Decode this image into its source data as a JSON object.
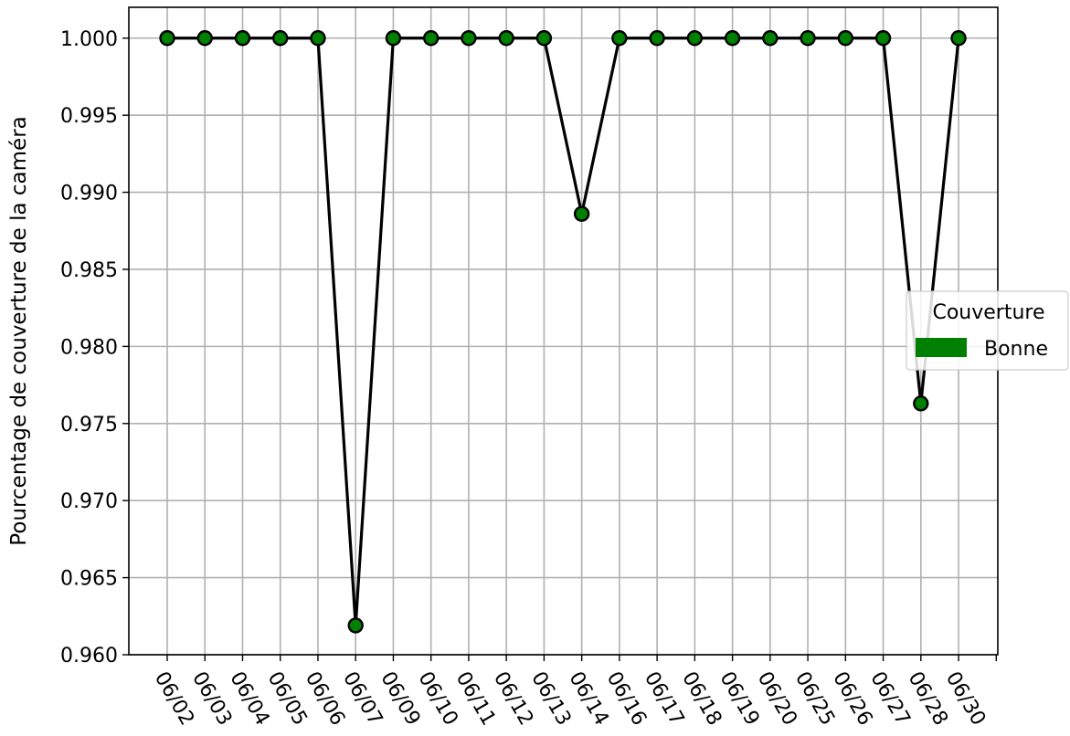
{
  "chart_data": {
    "type": "line",
    "title": "",
    "xlabel": "",
    "ylabel": "Pourcentage de couverture de la caméra",
    "categories": [
      "06/02",
      "06/03",
      "06/04",
      "06/05",
      "06/06",
      "06/07",
      "06/09",
      "06/10",
      "06/11",
      "06/12",
      "06/13",
      "06/14",
      "06/16",
      "06/17",
      "06/18",
      "06/19",
      "06/20",
      "06/25",
      "06/26",
      "06/27",
      "06/28",
      "06/30"
    ],
    "values": [
      1.0,
      1.0,
      1.0,
      1.0,
      1.0,
      0.9619,
      1.0,
      1.0,
      1.0,
      1.0,
      1.0,
      0.9886,
      1.0,
      1.0,
      1.0,
      1.0,
      1.0,
      1.0,
      1.0,
      1.0,
      0.9763,
      1.0
    ],
    "ylim": [
      0.96,
      1.002
    ],
    "yticks": [
      "0.960",
      "0.965",
      "0.970",
      "0.975",
      "0.980",
      "0.985",
      "0.990",
      "0.995",
      "1.000"
    ],
    "grid": true,
    "line_color": "#000000",
    "marker_fill": "#008000",
    "marker_edge": "#000000",
    "legend": {
      "title": "Couverture",
      "placement": "center-right",
      "entries": [
        {
          "label": "Bonne",
          "color": "#008000"
        }
      ]
    }
  }
}
